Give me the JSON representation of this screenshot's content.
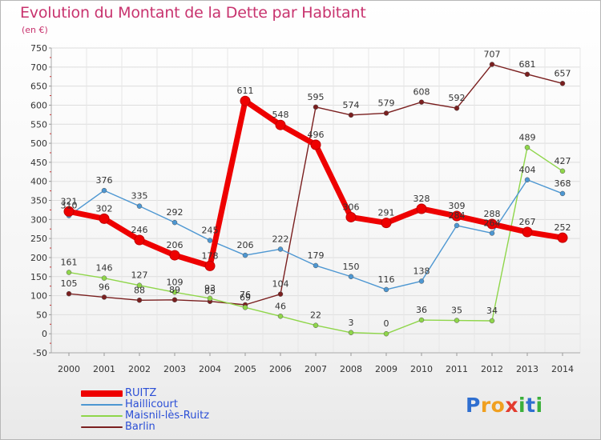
{
  "chart_data": {
    "type": "line",
    "title": "Evolution du Montant de la Dette par Habitant",
    "subtitle": "(en €)",
    "xlabel": "",
    "ylabel": "",
    "ylim": [
      -50,
      750
    ],
    "yticks": [
      -50,
      0,
      50,
      100,
      150,
      200,
      250,
      300,
      350,
      400,
      450,
      500,
      550,
      600,
      650,
      700,
      750
    ],
    "categories": [
      "2000",
      "2001",
      "2002",
      "2003",
      "2004",
      "2005",
      "2006",
      "2007",
      "2008",
      "2009",
      "2010",
      "2011",
      "2012",
      "2013",
      "2014"
    ],
    "grid": true,
    "series": [
      {
        "name": "RUITZ",
        "color": "#ee0000",
        "values": [
          321,
          302,
          246,
          206,
          178,
          611,
          548,
          496,
          306,
          291,
          328,
          309,
          288,
          267,
          252
        ],
        "labels": [
          "321",
          "302",
          "246",
          "206",
          "178",
          "611",
          "548",
          "496",
          "306",
          "291",
          "328",
          "309",
          "288",
          "267",
          "252"
        ]
      },
      {
        "name": "Haillicourt",
        "color": "#4d97d2",
        "values": [
          310,
          376,
          335,
          292,
          245,
          206,
          222,
          179,
          150,
          116,
          138,
          284,
          264,
          404,
          368
        ],
        "labels": [
          "310",
          "376",
          "335",
          "292",
          "245",
          "206",
          "222",
          "179",
          "150",
          "116",
          "138",
          "284",
          "264",
          "404",
          "368"
        ]
      },
      {
        "name": "Maisnil-lès-Ruitz",
        "color": "#8fd64a",
        "values": [
          161,
          146,
          127,
          109,
          93,
          69,
          46,
          22,
          3,
          0,
          36,
          35,
          34,
          489,
          427
        ],
        "labels": [
          "161",
          "146",
          "127",
          "109",
          "93",
          "69",
          "46",
          "22",
          "3",
          "0",
          "36",
          "35",
          "34",
          "489",
          "427"
        ]
      },
      {
        "name": "Barlin",
        "color": "#7a1f1f",
        "values": [
          105,
          96,
          88,
          89,
          85,
          76,
          104,
          595,
          574,
          579,
          608,
          592,
          707,
          681,
          657
        ],
        "labels": [
          "105",
          "96",
          "88",
          "89",
          "85",
          "76",
          "104",
          "595",
          "574",
          "579",
          "608",
          "592",
          "707",
          "681",
          "657"
        ]
      }
    ]
  },
  "legend": {
    "items": [
      {
        "name": "RUITZ",
        "color": "#ee0000"
      },
      {
        "name": "Haillicourt",
        "color": "#4d97d2"
      },
      {
        "name": "Maisnil-lès-Ruitz",
        "color": "#8fd64a"
      },
      {
        "name": "Barlin",
        "color": "#7a1f1f"
      }
    ]
  },
  "logo": {
    "text": "Proxiti",
    "letters": [
      {
        "char": "P",
        "color": "#2f6fd0"
      },
      {
        "char": "r",
        "color": "#f0a020"
      },
      {
        "char": "o",
        "color": "#f0a020"
      },
      {
        "char": "x",
        "color": "#e33c2f"
      },
      {
        "char": "i",
        "color": "#3bb03b"
      },
      {
        "char": "t",
        "color": "#2f6fd0"
      },
      {
        "char": "i",
        "color": "#3bb03b"
      }
    ]
  }
}
